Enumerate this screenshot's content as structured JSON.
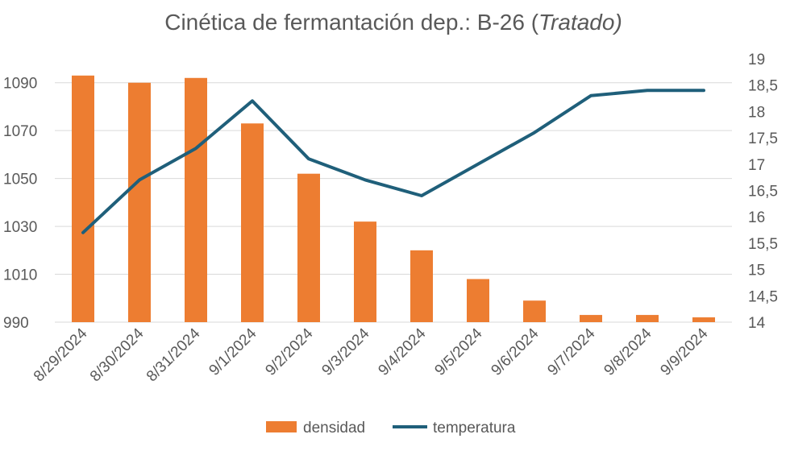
{
  "chart_data": {
    "type": "bar+line",
    "title": "Cinética de fermantación dep.: B-26 (",
    "title_italic": "Tratado)",
    "categories": [
      "8/29/2024",
      "8/30/2024",
      "8/31/2024",
      "9/1/2024",
      "9/2/2024",
      "9/3/2024",
      "9/4/2024",
      "9/5/2024",
      "9/6/2024",
      "9/7/2024",
      "9/8/2024",
      "9/9/2024"
    ],
    "series": [
      {
        "name": "densidad",
        "type": "bar",
        "axis": "left",
        "color": "#ED7D31",
        "values": [
          1093,
          1090,
          1092,
          1073,
          1052,
          1032,
          1020,
          1008,
          999,
          993,
          993,
          992
        ]
      },
      {
        "name": "temperatura",
        "type": "line",
        "axis": "right",
        "color": "#1F5F7A",
        "values": [
          15.7,
          16.7,
          17.3,
          18.2,
          17.1,
          16.7,
          16.4,
          17.0,
          17.6,
          18.3,
          18.4,
          18.4
        ]
      }
    ],
    "y_left": {
      "min": 990,
      "max": 1100,
      "ticks": [
        "990",
        "1010",
        "1030",
        "1050",
        "1070",
        "1090"
      ],
      "tick_values": [
        990,
        1010,
        1030,
        1050,
        1070,
        1090
      ]
    },
    "y_right": {
      "min": 14,
      "max": 19,
      "ticks": [
        "14",
        "14,5",
        "15",
        "15,5",
        "16",
        "16,5",
        "17",
        "17,5",
        "18",
        "18,5",
        "19"
      ],
      "tick_values": [
        14,
        14.5,
        15,
        15.5,
        16,
        16.5,
        17,
        17.5,
        18,
        18.5,
        19
      ]
    },
    "grid": true,
    "legend_position": "bottom"
  }
}
